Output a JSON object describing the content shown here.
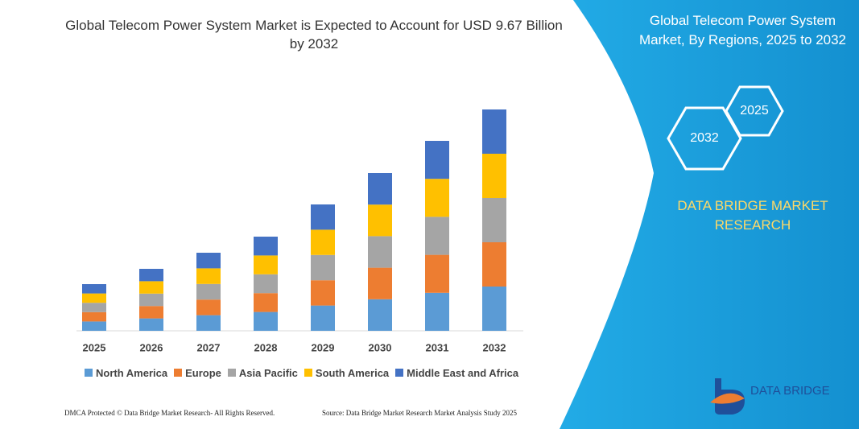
{
  "chart_data": {
    "type": "bar",
    "stacked": true,
    "title": "Global Telecom Power System Market is Expected to Account for USD 9.67 Billion by 2032",
    "categories": [
      "2025",
      "2026",
      "2027",
      "2028",
      "2029",
      "2030",
      "2031",
      "2032"
    ],
    "series": [
      {
        "name": "North America",
        "color": "#5b9bd5",
        "values": [
          11.6,
          15.4,
          19.4,
          23.4,
          31.4,
          39.2,
          47.2,
          55
        ]
      },
      {
        "name": "Europe",
        "color": "#ed7d31",
        "values": [
          11.6,
          15.4,
          19.4,
          23.4,
          31.4,
          39.2,
          47.2,
          55
        ]
      },
      {
        "name": "Asia Pacific",
        "color": "#a5a5a5",
        "values": [
          11.6,
          15.4,
          19.4,
          23.4,
          31.4,
          39.2,
          47.2,
          55
        ]
      },
      {
        "name": "South America",
        "color": "#ffc000",
        "values": [
          11.6,
          15.4,
          19.4,
          23.4,
          31.4,
          39.2,
          47.2,
          55
        ]
      },
      {
        "name": "Middle East and Africa",
        "color": "#4472c4",
        "values": [
          11.6,
          15.4,
          19.4,
          23.4,
          31.4,
          39.2,
          47.2,
          55
        ]
      }
    ]
  },
  "side_panel": {
    "title": "Global Telecom Power System Market, By Regions, 2025 to 2032",
    "hexagons": [
      "2032",
      "2025"
    ],
    "brand": "DATA BRIDGE MARKET RESEARCH"
  },
  "footer": {
    "copyright": "DMCA Protected © Data Bridge Market Research- All Rights Reserved.",
    "source": "Source: Data Bridge Market Research Market Analysis Study 2025"
  },
  "logo": "DATA BRIDGE"
}
